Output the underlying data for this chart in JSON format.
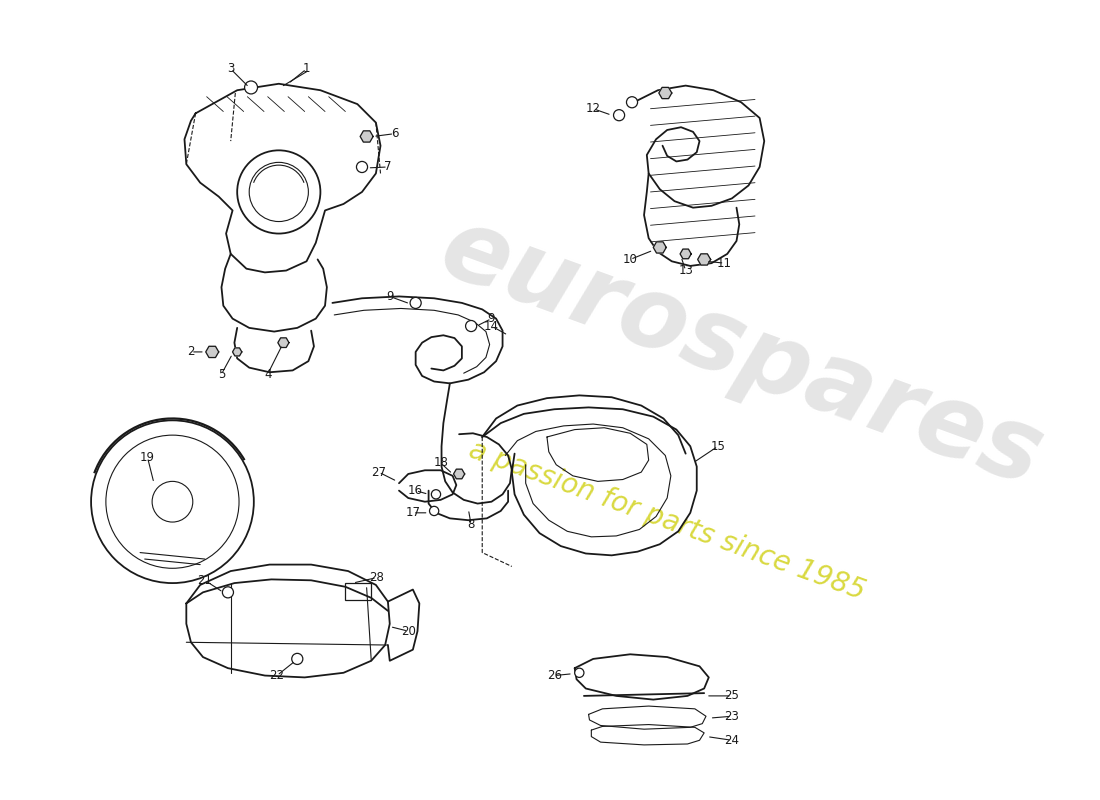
{
  "bg_color": "#ffffff",
  "line_color": "#1a1a1a",
  "watermark_text1": "eurospares",
  "watermark_text2": "a passion for parts since 1985",
  "wm_color1": "#d0d0d0",
  "wm_color2": "#cccc00",
  "fig_w": 11.0,
  "fig_h": 8.0,
  "dpi": 100,
  "lw_main": 1.3,
  "lw_thin": 0.8,
  "lw_hatch": 0.6,
  "label_fontsize": 8.5
}
